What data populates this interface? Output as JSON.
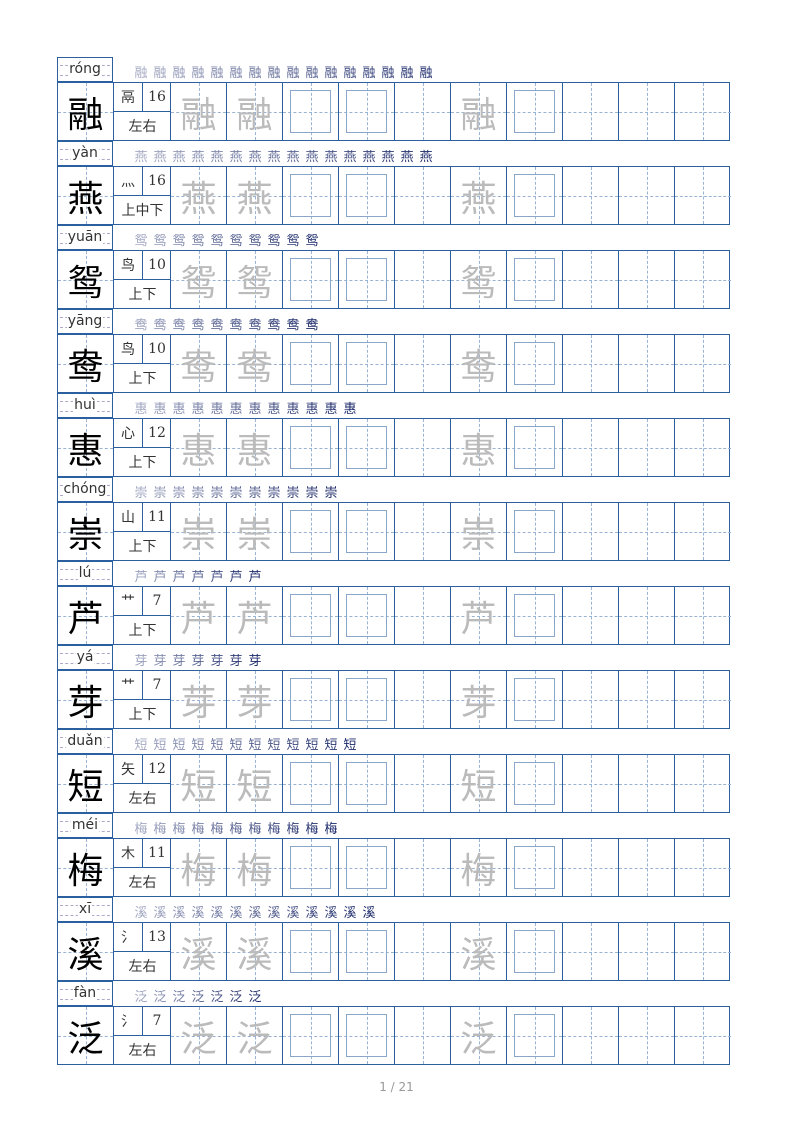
{
  "rows": [
    {
      "pinyin": "róng",
      "char": "融",
      "radical": "鬲",
      "strokes": "16",
      "structure": "左右"
    },
    {
      "pinyin": "yàn",
      "char": "燕",
      "radical": "灬",
      "strokes": "16",
      "structure": "上中下"
    },
    {
      "pinyin": "yuān",
      "char": "鸳",
      "radical": "鸟",
      "strokes": "10",
      "structure": "上下"
    },
    {
      "pinyin": "yāng",
      "char": "鸯",
      "radical": "鸟",
      "strokes": "10",
      "structure": "上下"
    },
    {
      "pinyin": "huì",
      "char": "惠",
      "radical": "心",
      "strokes": "12",
      "structure": "上下"
    },
    {
      "pinyin": "chóng",
      "char": "崇",
      "radical": "山",
      "strokes": "11",
      "structure": "上下"
    },
    {
      "pinyin": "lú",
      "char": "芦",
      "radical": "艹",
      "strokes": "7",
      "structure": "上下"
    },
    {
      "pinyin": "yá",
      "char": "芽",
      "radical": "艹",
      "strokes": "7",
      "structure": "上下"
    },
    {
      "pinyin": "duǎn",
      "char": "短",
      "radical": "矢",
      "strokes": "12",
      "structure": "左右"
    },
    {
      "pinyin": "méi",
      "char": "梅",
      "radical": "木",
      "strokes": "11",
      "structure": "左右"
    },
    {
      "pinyin": "xī",
      "char": "溪",
      "radical": "氵",
      "strokes": "13",
      "structure": "左右"
    },
    {
      "pinyin": "fàn",
      "char": "泛",
      "radical": "氵",
      "strokes": "7",
      "structure": "左右"
    }
  ],
  "footer": {
    "page": "1 / 21"
  },
  "colors": {
    "border": "#2b5f9e",
    "ghost": "#bbbbbb",
    "stroke_steps": "#1c2a6b"
  }
}
